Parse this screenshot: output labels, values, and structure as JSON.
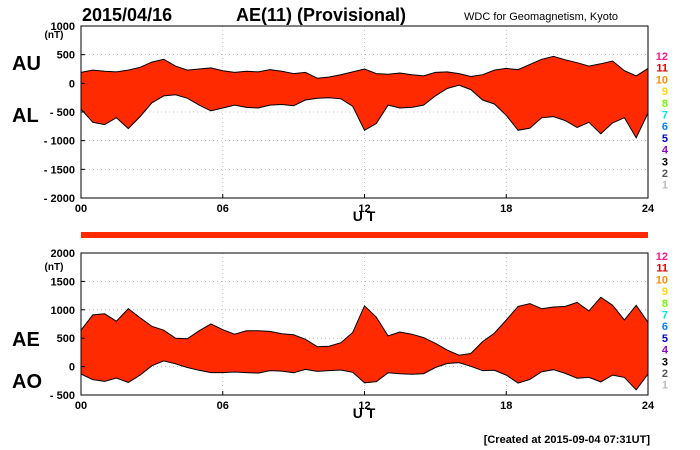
{
  "header": {
    "date": "2015/04/16",
    "title": "AE(11) (Provisional)",
    "source": "WDC for Geomagnetism, Kyoto"
  },
  "footer": {
    "created": "[Created at 2015-09-04 07:31UT]"
  },
  "colors": {
    "fill": "#ff2a00",
    "outline": "#000000",
    "bar": "#ff2a00",
    "frame": "#000000",
    "grid_dot": "#9a9a9a"
  },
  "station_scale": [
    {
      "label": "12",
      "color": "#ff1a8c"
    },
    {
      "label": "11",
      "color": "#e00000"
    },
    {
      "label": "10",
      "color": "#ff8c00"
    },
    {
      "label": "9",
      "color": "#ffd700"
    },
    {
      "label": "8",
      "color": "#7cfc00"
    },
    {
      "label": "7",
      "color": "#00e5e5"
    },
    {
      "label": "6",
      "color": "#0080ff"
    },
    {
      "label": "5",
      "color": "#0000cd"
    },
    {
      "label": "4",
      "color": "#9400d3"
    },
    {
      "label": "3",
      "color": "#000000"
    },
    {
      "label": "2",
      "color": "#555555"
    },
    {
      "label": "1",
      "color": "#bbbbbb"
    }
  ],
  "chart_data": [
    {
      "type": "area",
      "title": "",
      "series_labels": [
        "AU",
        "AL"
      ],
      "unit": "(nT)",
      "xlabel": "U T",
      "xlim": [
        0,
        24
      ],
      "x_ticks": [
        "00",
        "06",
        "12",
        "18",
        "24"
      ],
      "x_tick_values": [
        0,
        6,
        12,
        18,
        24
      ],
      "ylim": [
        -2000,
        1000
      ],
      "y_ticks": [
        "1000",
        "500",
        "0",
        "- 500",
        "- 1000",
        "- 1500",
        "- 2000"
      ],
      "y_tick_values": [
        1000,
        500,
        0,
        -500,
        -1000,
        -1500,
        -2000
      ],
      "x": [
        0,
        0.5,
        1,
        1.5,
        2,
        2.5,
        3,
        3.5,
        4,
        4.5,
        5,
        5.5,
        6,
        6.5,
        7,
        7.5,
        8,
        8.5,
        9,
        9.5,
        10,
        10.5,
        11,
        11.5,
        12,
        12.5,
        13,
        13.5,
        14,
        14.5,
        15,
        15.5,
        16,
        16.5,
        17,
        17.5,
        18,
        18.5,
        19,
        19.5,
        20,
        20.5,
        21,
        21.5,
        22,
        22.5,
        23,
        23.5,
        24
      ],
      "series": [
        {
          "name": "AU",
          "values": [
            190,
            230,
            210,
            200,
            230,
            280,
            370,
            420,
            300,
            230,
            250,
            270,
            220,
            190,
            210,
            200,
            240,
            210,
            170,
            190,
            90,
            110,
            150,
            200,
            250,
            170,
            160,
            180,
            150,
            130,
            190,
            200,
            170,
            120,
            150,
            230,
            260,
            240,
            330,
            420,
            470,
            410,
            360,
            300,
            340,
            390,
            220,
            130,
            260
          ]
        },
        {
          "name": "AL",
          "values": [
            -450,
            -680,
            -720,
            -600,
            -790,
            -580,
            -340,
            -220,
            -200,
            -260,
            -380,
            -480,
            -430,
            -380,
            -420,
            -430,
            -380,
            -370,
            -390,
            -290,
            -260,
            -250,
            -270,
            -400,
            -820,
            -700,
            -380,
            -430,
            -420,
            -380,
            -220,
            -90,
            -30,
            -110,
            -290,
            -360,
            -560,
            -820,
            -780,
            -600,
            -580,
            -650,
            -770,
            -680,
            -880,
            -690,
            -600,
            -950,
            -520
          ]
        }
      ]
    },
    {
      "type": "area",
      "title": "",
      "series_labels": [
        "AE",
        "AO"
      ],
      "unit": "(nT)",
      "xlabel": "U T",
      "xlim": [
        0,
        24
      ],
      "x_ticks": [
        "00",
        "06",
        "12",
        "18",
        "24"
      ],
      "x_tick_values": [
        0,
        6,
        12,
        18,
        24
      ],
      "ylim": [
        -500,
        2000
      ],
      "y_ticks": [
        "2000",
        "1500",
        "1000",
        "500",
        "0",
        "- 500"
      ],
      "y_tick_values": [
        2000,
        1500,
        1000,
        500,
        0,
        -500
      ],
      "x": [
        0,
        0.5,
        1,
        1.5,
        2,
        2.5,
        3,
        3.5,
        4,
        4.5,
        5,
        5.5,
        6,
        6.5,
        7,
        7.5,
        8,
        8.5,
        9,
        9.5,
        10,
        10.5,
        11,
        11.5,
        12,
        12.5,
        13,
        13.5,
        14,
        14.5,
        15,
        15.5,
        16,
        16.5,
        17,
        17.5,
        18,
        18.5,
        19,
        19.5,
        20,
        20.5,
        21,
        21.5,
        22,
        22.5,
        23,
        23.5,
        24
      ],
      "series": [
        {
          "name": "AE",
          "values": [
            640,
            910,
            930,
            800,
            1020,
            860,
            710,
            640,
            500,
            490,
            630,
            750,
            650,
            570,
            630,
            630,
            620,
            580,
            560,
            480,
            350,
            360,
            420,
            600,
            1070,
            870,
            540,
            610,
            570,
            510,
            410,
            290,
            200,
            230,
            440,
            590,
            820,
            1060,
            1110,
            1020,
            1050,
            1060,
            1130,
            980,
            1220,
            1080,
            820,
            1080,
            780
          ]
        },
        {
          "name": "AO",
          "values": [
            -130,
            -230,
            -260,
            -200,
            -280,
            -150,
            15,
            100,
            50,
            -15,
            -65,
            -105,
            -105,
            -95,
            -105,
            -115,
            -70,
            -80,
            -110,
            -50,
            -85,
            -70,
            -60,
            -100,
            -285,
            -265,
            -110,
            -125,
            -135,
            -125,
            -15,
            55,
            70,
            5,
            -70,
            -65,
            -150,
            -290,
            -225,
            -90,
            -55,
            -120,
            -205,
            -190,
            -270,
            -150,
            -190,
            -410,
            -130
          ]
        }
      ]
    }
  ]
}
